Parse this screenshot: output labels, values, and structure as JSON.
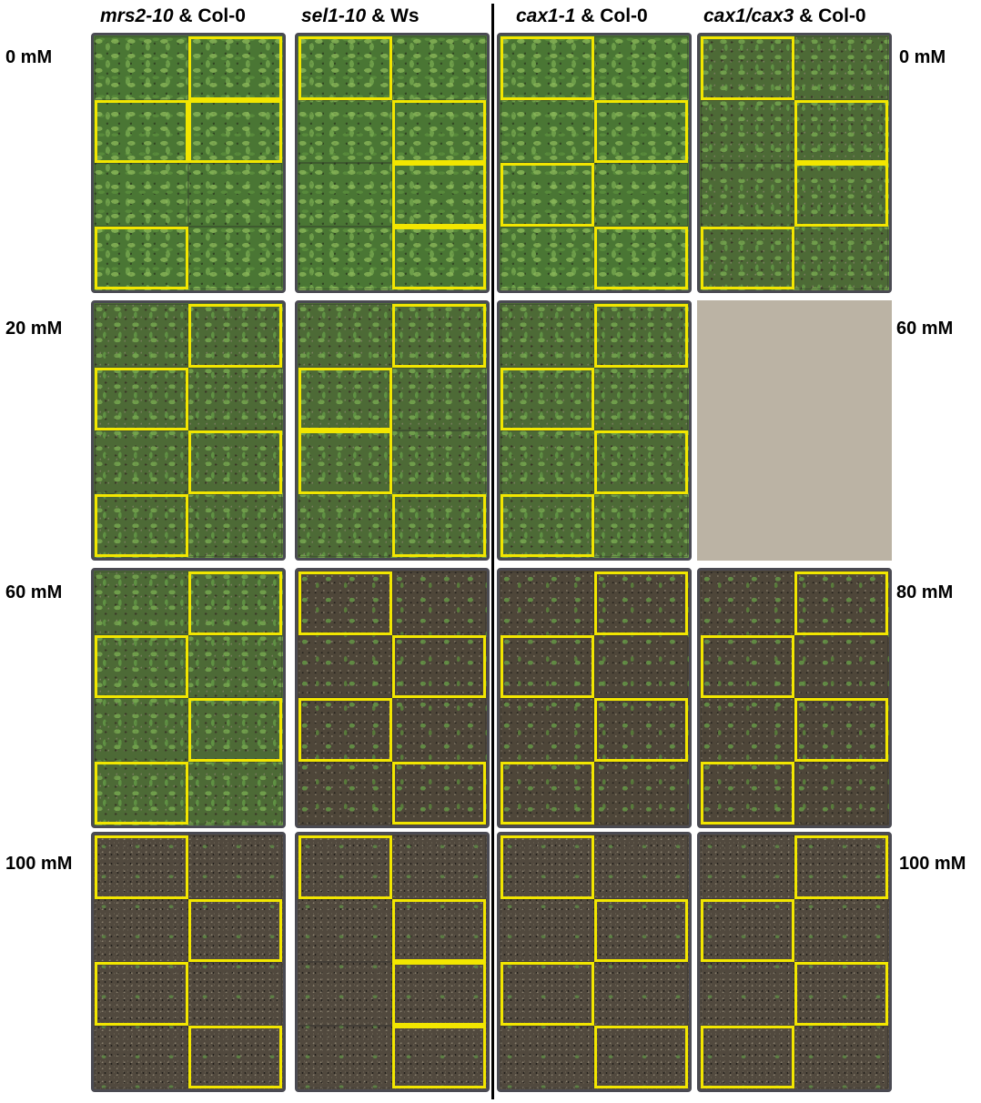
{
  "columns": [
    {
      "genotype": "mrs2-10",
      "suffix": " & Col-0"
    },
    {
      "genotype": "sel1-10",
      "suffix": " & Ws"
    },
    {
      "genotype": "cax1-1",
      "suffix": " & Col-0"
    },
    {
      "genotype": "cax1/cax3",
      "suffix": " & Col-0"
    }
  ],
  "left_row_labels": [
    "0 mM",
    "20  mM",
    "60 mM",
    "100 mM"
  ],
  "right_row_labels": [
    "0 mM",
    "60  mM",
    "80 mM",
    "100 mM"
  ],
  "trays": [
    {
      "row": 1,
      "col": 1,
      "growth": "lush",
      "highlighted_quadrants": [
        2,
        3,
        4,
        7
      ]
    },
    {
      "row": 1,
      "col": 2,
      "growth": "lush",
      "highlighted_quadrants": [
        1,
        4,
        6,
        8
      ]
    },
    {
      "row": 1,
      "col": 3,
      "growth": "lush",
      "highlighted_quadrants": [
        1,
        4,
        5,
        8
      ]
    },
    {
      "row": 1,
      "col": 4,
      "growth": "medium",
      "highlighted_quadrants": [
        1,
        4,
        6,
        7
      ]
    },
    {
      "row": 2,
      "col": 1,
      "growth": "medium",
      "highlighted_quadrants": [
        2,
        3,
        6,
        7
      ]
    },
    {
      "row": 2,
      "col": 2,
      "growth": "medium",
      "highlighted_quadrants": [
        2,
        3,
        5,
        8
      ]
    },
    {
      "row": 2,
      "col": 3,
      "growth": "medium",
      "highlighted_quadrants": [
        2,
        3,
        6,
        7
      ]
    },
    {
      "row": 2,
      "col": 4,
      "growth": "empty",
      "highlighted_quadrants": []
    },
    {
      "row": 3,
      "col": 1,
      "growth": "medium",
      "highlighted_quadrants": [
        2,
        3,
        6,
        7
      ]
    },
    {
      "row": 3,
      "col": 2,
      "growth": "sparse",
      "highlighted_quadrants": [
        1,
        4,
        5,
        8
      ]
    },
    {
      "row": 3,
      "col": 3,
      "growth": "sparse",
      "highlighted_quadrants": [
        2,
        3,
        6,
        7
      ]
    },
    {
      "row": 3,
      "col": 4,
      "growth": "sparse",
      "highlighted_quadrants": [
        2,
        3,
        6,
        7
      ]
    },
    {
      "row": 4,
      "col": 1,
      "growth": "bare",
      "highlighted_quadrants": [
        1,
        4,
        5,
        8
      ]
    },
    {
      "row": 4,
      "col": 2,
      "growth": "bare",
      "highlighted_quadrants": [
        1,
        4,
        6,
        8
      ]
    },
    {
      "row": 4,
      "col": 3,
      "growth": "bare",
      "highlighted_quadrants": [
        1,
        4,
        5,
        8
      ]
    },
    {
      "row": 4,
      "col": 4,
      "growth": "bare",
      "highlighted_quadrants": [
        2,
        3,
        6,
        7
      ]
    }
  ]
}
